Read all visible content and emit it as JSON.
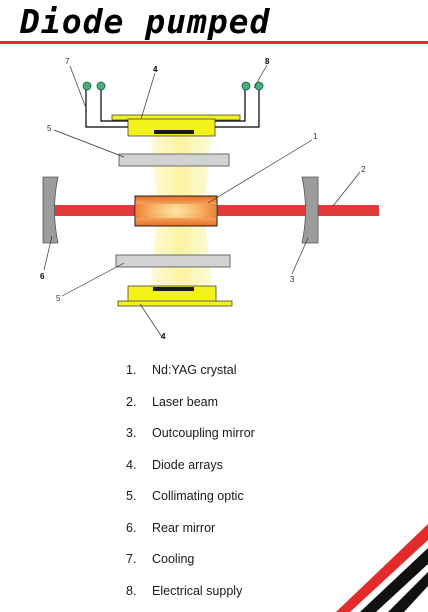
{
  "header": {
    "title": "Diode pumped"
  },
  "colors": {
    "accent_red": "#e32b2b",
    "beam_red": "#e23a3a",
    "crystal_orange": "#f07a2a",
    "diode_yellow": "#f2f21a",
    "pump_light": "#fbf6b4",
    "mirror_gray": "#9c9c9c",
    "optic_gray": "#d2d2d2",
    "cooling_green": "#43b37d"
  },
  "diagram": {
    "callouts": {
      "crystal": "1",
      "beam": "2",
      "outcoupler": "3",
      "diode_top": "4",
      "diode_bottom": "4",
      "optic_top": "5",
      "optic_bottom": "5",
      "rear_mirror": "6",
      "cooling": "7",
      "supply": "8"
    }
  },
  "legend": {
    "items": [
      {
        "num": "1.",
        "label": "Nd:YAG crystal"
      },
      {
        "num": "2.",
        "label": "Laser beam"
      },
      {
        "num": "3.",
        "label": "Outcoupling mirror"
      },
      {
        "num": "4.",
        "label": "Diode arrays"
      },
      {
        "num": "5.",
        "label": "Collimating optic"
      },
      {
        "num": "6.",
        "label": "Rear mirror"
      },
      {
        "num": "7.",
        "label": "Cooling"
      },
      {
        "num": "8.",
        "label": "Electrical supply"
      }
    ]
  }
}
